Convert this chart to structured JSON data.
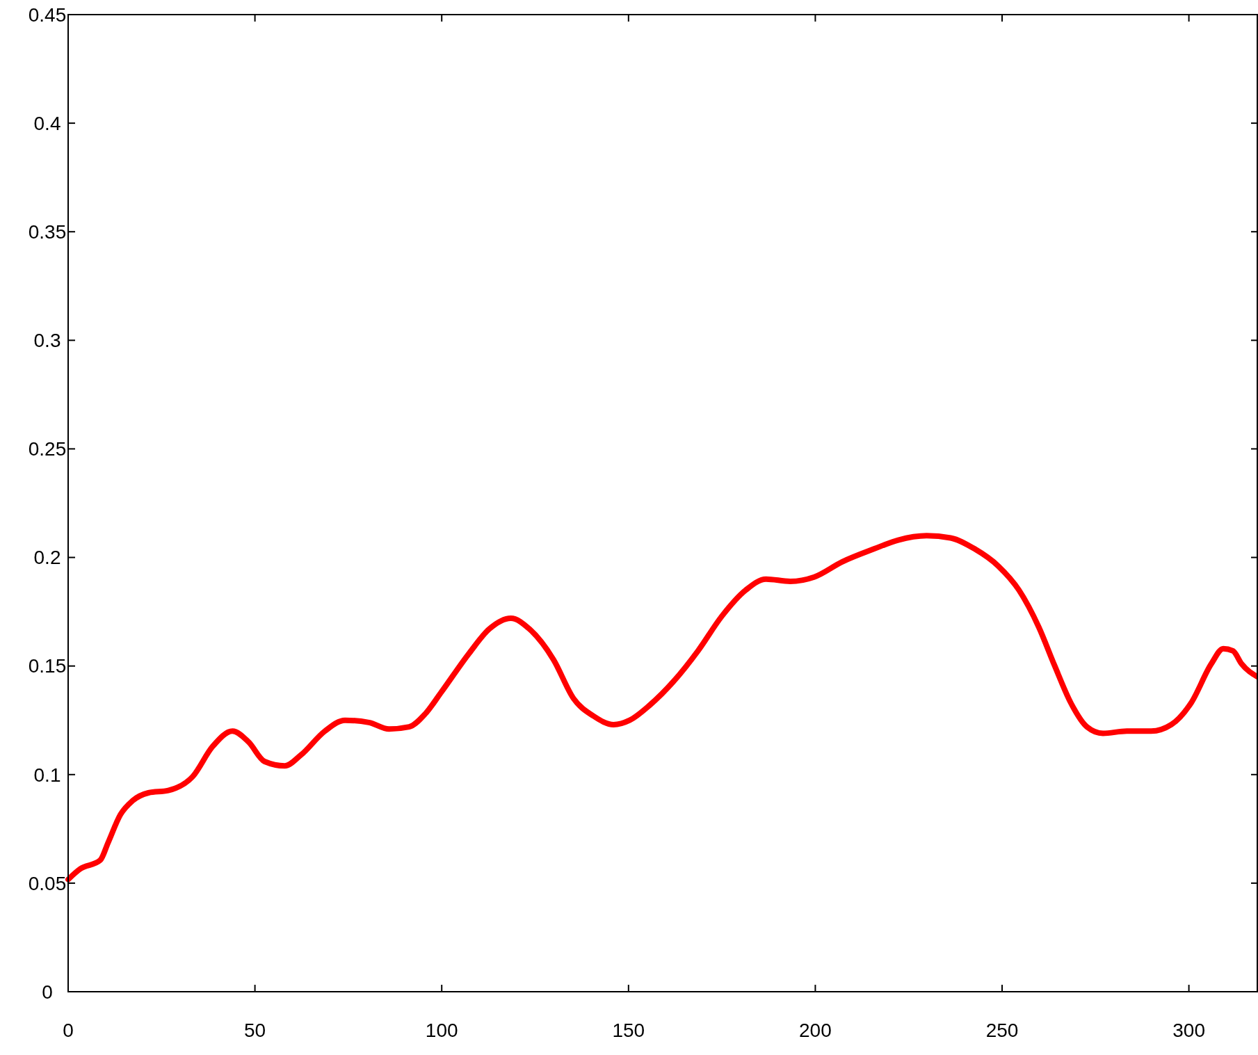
{
  "chart_data": {
    "type": "line",
    "xlim": [
      0,
      318.5
    ],
    "ylim": [
      0,
      0.45
    ],
    "xticks": [
      0,
      50,
      100,
      150,
      200,
      250,
      300
    ],
    "yticks": [
      0,
      0.05,
      0.1,
      0.15,
      0.2,
      0.25,
      0.3,
      0.35,
      0.4,
      0.45
    ],
    "grid": false,
    "marker": "none",
    "line_style": "solid",
    "series": [
      {
        "color": "#ff0000",
        "x": [
          0,
          3.2,
          8.6,
          10.7,
          14,
          17.2,
          21.5,
          26.8,
          33.3,
          38.7,
          44,
          48.3,
          52.6,
          58,
          62.3,
          68.7,
          74.1,
          80.5,
          85.9,
          91.3,
          95.6,
          99.9,
          107.4,
          112.7,
          118.5,
          123.5,
          129.9,
          135.3,
          140.6,
          146,
          150.3,
          155.7,
          162.1,
          168.6,
          175,
          181.4,
          186.8,
          193.3,
          199.7,
          207.2,
          215.8,
          222.2,
          229.8,
          236.2,
          242.6,
          249,
          254.5,
          259.8,
          264.1,
          268.4,
          272.7,
          277,
          283.4,
          289.9,
          295.3,
          300.6,
          306,
          309.2,
          311.8,
          314.1,
          318.4
        ],
        "values": [
          0.0517,
          0.0565,
          0.0606,
          0.0687,
          0.0816,
          0.0879,
          0.0916,
          0.0927,
          0.099,
          0.113,
          0.12,
          0.115,
          0.106,
          0.104,
          0.109,
          0.12,
          0.125,
          0.124,
          0.121,
          0.122,
          0.128,
          0.138,
          0.156,
          0.167,
          0.172,
          0.167,
          0.153,
          0.135,
          0.127,
          0.123,
          0.125,
          0.132,
          0.143,
          0.157,
          0.173,
          0.185,
          0.19,
          0.189,
          0.191,
          0.198,
          0.204,
          0.208,
          0.21,
          0.209,
          0.204,
          0.196,
          0.185,
          0.168,
          0.15,
          0.133,
          0.122,
          0.119,
          0.12,
          0.12,
          0.123,
          0.133,
          0.151,
          0.158,
          0.157,
          0.151,
          0.145
        ]
      }
    ]
  }
}
